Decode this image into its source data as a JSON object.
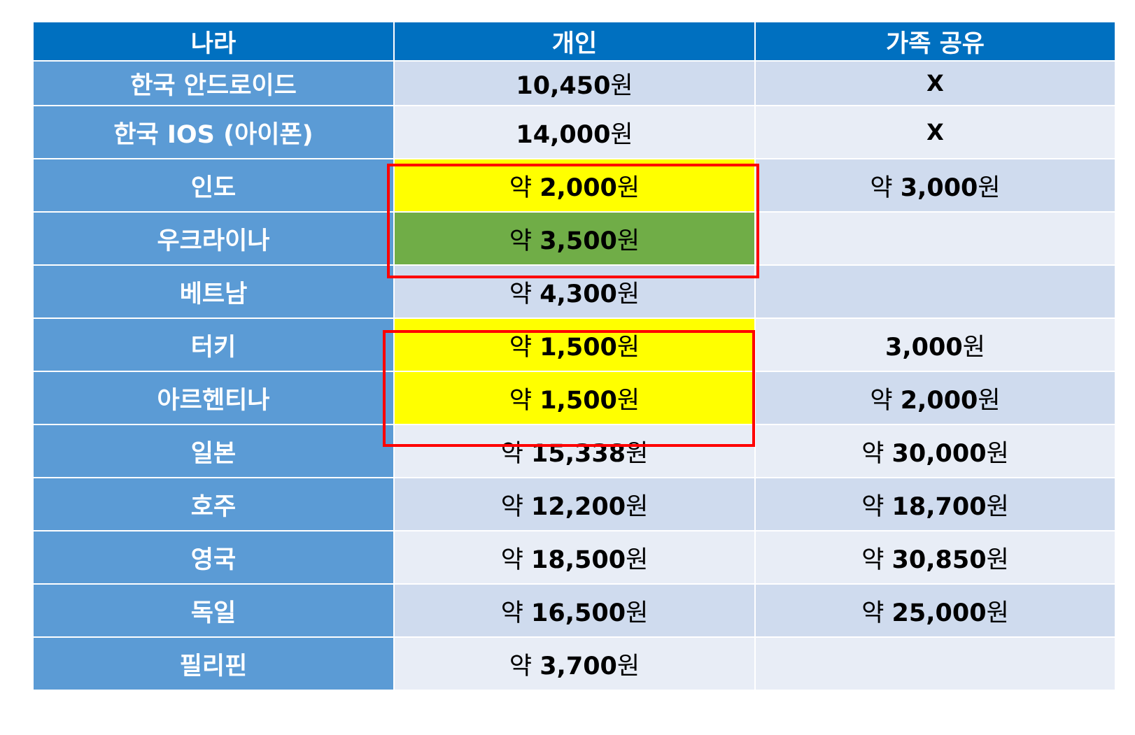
{
  "headers": [
    "나라",
    "개인",
    "가족 공유"
  ],
  "rows": [
    {
      "country": "한국 안드로이드",
      "personal": {
        "prefix": "",
        "number": "10,450",
        "unit": "원"
      },
      "family": {
        "mark": "X"
      }
    },
    {
      "country": "한국 IOS (아이폰)",
      "personal": {
        "prefix": "",
        "number": "14,000",
        "unit": "원"
      },
      "family": {
        "mark": "X"
      }
    },
    {
      "country": "인도",
      "personal": {
        "prefix": "약 ",
        "number": "2,000",
        "unit": "원"
      },
      "family": {
        "prefix": "약 ",
        "number": "3,000",
        "unit": "원"
      }
    },
    {
      "country": "우크라이나",
      "personal": {
        "prefix": "약 ",
        "number": "3,500",
        "unit": "원"
      },
      "family": {}
    },
    {
      "country": "베트남",
      "personal": {
        "prefix": "약 ",
        "number": "4,300",
        "unit": "원"
      },
      "family": {}
    },
    {
      "country": "터키",
      "personal": {
        "prefix": "약 ",
        "number": "1,500",
        "unit": "원"
      },
      "family": {
        "prefix": "",
        "number": "3,000",
        "unit": "원"
      }
    },
    {
      "country": "아르헨티나",
      "personal": {
        "prefix": "약 ",
        "number": "1,500",
        "unit": "원"
      },
      "family": {
        "prefix": "약 ",
        "number": "2,000",
        "unit": "원"
      }
    },
    {
      "country": "일본",
      "personal": {
        "prefix": "약 ",
        "number": "15,338",
        "unit": "원"
      },
      "family": {
        "prefix": "약 ",
        "number": "30,000",
        "unit": "원"
      }
    },
    {
      "country": "호주",
      "personal": {
        "prefix": "약 ",
        "number": "12,200",
        "unit": "원"
      },
      "family": {
        "prefix": "약 ",
        "number": "18,700",
        "unit": "원"
      }
    },
    {
      "country": "영국",
      "personal": {
        "prefix": "약 ",
        "number": "18,500",
        "unit": "원"
      },
      "family": {
        "prefix": "약 ",
        "number": "30,850",
        "unit": "원"
      }
    },
    {
      "country": "독일",
      "personal": {
        "prefix": "약 ",
        "number": "16,500",
        "unit": "원"
      },
      "family": {
        "prefix": "약 ",
        "number": "25,000",
        "unit": "원"
      }
    },
    {
      "country": "필리핀",
      "personal": {
        "prefix": "약 ",
        "number": "3,700",
        "unit": "원"
      },
      "family": {}
    }
  ],
  "colors": {
    "header_bg": "#0070c0",
    "country_bg": "#5b9bd5",
    "row_dark": "#cfdbee",
    "row_light": "#e8edf6",
    "highlight_yellow": "#ffff00",
    "highlight_green": "#70ad47",
    "outline_red": "#ff0000"
  }
}
